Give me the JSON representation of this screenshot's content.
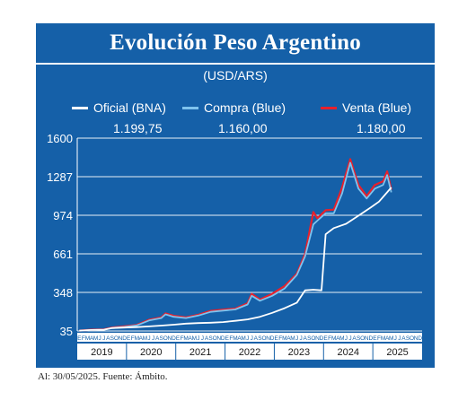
{
  "footer": "Al: 30/05/2025. Fuente: Ámbito.",
  "colors": {
    "background": "#1560a8",
    "oficial": "#ffffff",
    "compra": "#7ec3ee",
    "venta": "#e8202b",
    "grid": "#ffffff"
  },
  "chart_data": {
    "type": "line",
    "title": "Evolución Peso Argentino",
    "subtitle": "(USD/ARS)",
    "ylim": [
      35,
      1600
    ],
    "yticks": [
      35,
      348,
      661,
      974,
      1287,
      1600
    ],
    "month_letters": [
      "E",
      "F",
      "M",
      "A",
      "M",
      "J",
      "J",
      "A",
      "S",
      "O",
      "N",
      "D"
    ],
    "years": [
      "2019",
      "2020",
      "2021",
      "2022",
      "2023",
      "2024",
      "2025"
    ],
    "x_range": [
      "2019-01",
      "2025-05"
    ],
    "legend_position": "top",
    "series": [
      {
        "name": "Oficial (BNA)",
        "last_value": "1.199,75",
        "x": [
          "2019-01",
          "2019-04",
          "2019-07",
          "2019-09",
          "2019-12",
          "2020-03",
          "2020-06",
          "2020-09",
          "2020-12",
          "2021-03",
          "2021-06",
          "2021-09",
          "2021-12",
          "2022-03",
          "2022-06",
          "2022-09",
          "2022-12",
          "2023-03",
          "2023-06",
          "2023-08",
          "2023-10",
          "2023-12",
          "2024-01",
          "2024-03",
          "2024-06",
          "2024-09",
          "2024-12",
          "2025-02",
          "2025-04",
          "2025-05"
        ],
        "values": [
          38,
          43,
          45,
          58,
          63,
          66,
          72,
          79,
          86,
          95,
          99,
          102,
          107,
          117,
          129,
          150,
          182,
          220,
          265,
          365,
          370,
          365,
          820,
          870,
          905,
          970,
          1038,
          1085,
          1160,
          1199.75
        ]
      },
      {
        "name": "Compra (Blue)",
        "last_value": "1.160,00",
        "x": [
          "2019-01",
          "2019-04",
          "2019-07",
          "2019-09",
          "2019-12",
          "2020-03",
          "2020-06",
          "2020-09",
          "2020-10",
          "2020-12",
          "2021-03",
          "2021-06",
          "2021-09",
          "2021-12",
          "2022-03",
          "2022-06",
          "2022-07",
          "2022-09",
          "2022-12",
          "2023-03",
          "2023-06",
          "2023-08",
          "2023-10",
          "2023-11",
          "2024-01",
          "2024-03",
          "2024-05",
          "2024-07",
          "2024-09",
          "2024-11",
          "2025-01",
          "2025-03",
          "2025-04",
          "2025-05"
        ],
        "values": [
          37,
          43,
          46,
          60,
          68,
          80,
          120,
          140,
          170,
          150,
          140,
          160,
          190,
          200,
          210,
          250,
          320,
          280,
          320,
          380,
          490,
          640,
          900,
          930,
          990,
          990,
          1150,
          1400,
          1190,
          1110,
          1190,
          1220,
          1300,
          1160
        ]
      },
      {
        "name": "Venta (Blue)",
        "last_value": "1.180,00",
        "x": [
          "2019-01",
          "2019-04",
          "2019-07",
          "2019-09",
          "2019-12",
          "2020-03",
          "2020-06",
          "2020-09",
          "2020-10",
          "2020-12",
          "2021-03",
          "2021-06",
          "2021-09",
          "2021-12",
          "2022-03",
          "2022-06",
          "2022-07",
          "2022-09",
          "2022-12",
          "2023-03",
          "2023-06",
          "2023-08",
          "2023-10",
          "2023-11",
          "2024-01",
          "2024-03",
          "2024-05",
          "2024-07",
          "2024-09",
          "2024-11",
          "2025-01",
          "2025-03",
          "2025-04",
          "2025-05"
        ],
        "values": [
          38,
          45,
          48,
          63,
          72,
          84,
          126,
          146,
          178,
          158,
          146,
          167,
          198,
          208,
          216,
          260,
          336,
          290,
          336,
          400,
          500,
          660,
          1000,
          950,
          1015,
          1020,
          1200,
          1430,
          1220,
          1130,
          1220,
          1250,
          1330,
          1180
        ]
      }
    ]
  }
}
